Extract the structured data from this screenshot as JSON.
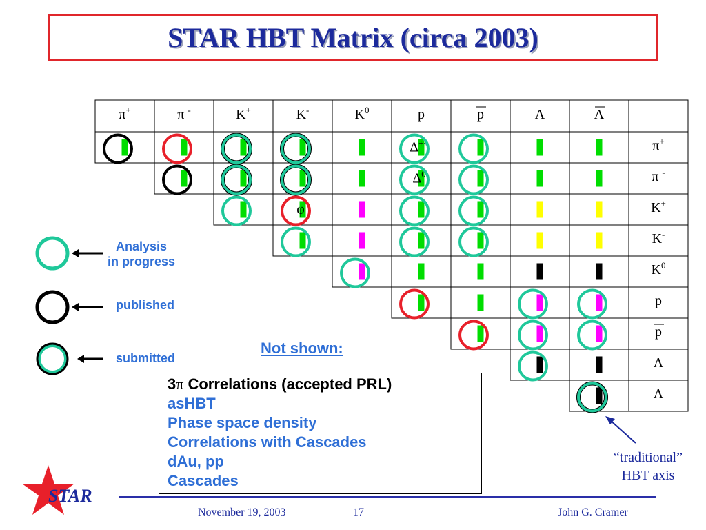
{
  "title": "STAR HBT Matrix (circa 2003)",
  "matrix": {
    "columns": [
      {
        "base": "π",
        "sup": "+",
        "bar": false
      },
      {
        "base": "π ",
        "sup": "-",
        "bar": false
      },
      {
        "base": "K",
        "sup": "+",
        "bar": false
      },
      {
        "base": "K",
        "sup": "-",
        "bar": false
      },
      {
        "base": "K",
        "sup": "0",
        "bar": false
      },
      {
        "base": "p",
        "sup": "",
        "bar": false
      },
      {
        "base": "p",
        "sup": "",
        "bar": true
      },
      {
        "base": "Λ",
        "sup": "",
        "bar": false
      },
      {
        "base": "Λ",
        "sup": "",
        "bar": true
      }
    ],
    "rows": [
      {
        "base": "π",
        "sup": "+",
        "bar": false
      },
      {
        "base": "π ",
        "sup": "-",
        "bar": false
      },
      {
        "base": "K",
        "sup": "+",
        "bar": false
      },
      {
        "base": "K",
        "sup": "-",
        "bar": false
      },
      {
        "base": "K",
        "sup": "0",
        "bar": false
      },
      {
        "base": "p",
        "sup": "",
        "bar": false
      },
      {
        "base": "p",
        "sup": "",
        "bar": true
      },
      {
        "base": "Λ",
        "sup": "",
        "bar": false
      },
      {
        "base": "Λ",
        "sup": "",
        "bar": false
      }
    ],
    "cell_labels": [
      {
        "row": 0,
        "col": 5,
        "base": "Δ",
        "sup": "++"
      },
      {
        "row": 1,
        "col": 5,
        "base": "Δ",
        "sup": "0"
      },
      {
        "row": 2,
        "col": 3,
        "base": "φ",
        "sup": ""
      }
    ],
    "colors": {
      "green": "#00dd00",
      "magenta": "#ff00ff",
      "yellow": "#ffff00",
      "black": "#000000",
      "analysis": "#1fc89a",
      "published": "#000000",
      "submitted": "#1fa87a",
      "red": "#e8202a"
    },
    "cells": [
      {
        "row": 0,
        "col": 0,
        "bar": "green",
        "ring": "published"
      },
      {
        "row": 0,
        "col": 1,
        "bar": "green",
        "ring": "red"
      },
      {
        "row": 0,
        "col": 2,
        "bar": "green",
        "ring": "submitted"
      },
      {
        "row": 0,
        "col": 3,
        "bar": "green",
        "ring": "submitted"
      },
      {
        "row": 0,
        "col": 4,
        "bar": "green",
        "ring": ""
      },
      {
        "row": 0,
        "col": 5,
        "bar": "green",
        "ring": "analysis"
      },
      {
        "row": 0,
        "col": 6,
        "bar": "green",
        "ring": "analysis"
      },
      {
        "row": 0,
        "col": 7,
        "bar": "green",
        "ring": ""
      },
      {
        "row": 0,
        "col": 8,
        "bar": "green",
        "ring": ""
      },
      {
        "row": 1,
        "col": 1,
        "bar": "green",
        "ring": "published"
      },
      {
        "row": 1,
        "col": 2,
        "bar": "green",
        "ring": "submitted"
      },
      {
        "row": 1,
        "col": 3,
        "bar": "green",
        "ring": "submitted"
      },
      {
        "row": 1,
        "col": 4,
        "bar": "green",
        "ring": ""
      },
      {
        "row": 1,
        "col": 5,
        "bar": "green",
        "ring": "analysis"
      },
      {
        "row": 1,
        "col": 6,
        "bar": "green",
        "ring": "analysis"
      },
      {
        "row": 1,
        "col": 7,
        "bar": "green",
        "ring": ""
      },
      {
        "row": 1,
        "col": 8,
        "bar": "green",
        "ring": ""
      },
      {
        "row": 2,
        "col": 2,
        "bar": "green",
        "ring": "analysis"
      },
      {
        "row": 2,
        "col": 3,
        "bar": "green",
        "ring": "red"
      },
      {
        "row": 2,
        "col": 4,
        "bar": "magenta",
        "ring": ""
      },
      {
        "row": 2,
        "col": 5,
        "bar": "green",
        "ring": "analysis"
      },
      {
        "row": 2,
        "col": 6,
        "bar": "green",
        "ring": "analysis"
      },
      {
        "row": 2,
        "col": 7,
        "bar": "yellow",
        "ring": ""
      },
      {
        "row": 2,
        "col": 8,
        "bar": "yellow",
        "ring": ""
      },
      {
        "row": 3,
        "col": 3,
        "bar": "green",
        "ring": "analysis"
      },
      {
        "row": 3,
        "col": 4,
        "bar": "magenta",
        "ring": ""
      },
      {
        "row": 3,
        "col": 5,
        "bar": "green",
        "ring": "analysis"
      },
      {
        "row": 3,
        "col": 6,
        "bar": "green",
        "ring": "analysis"
      },
      {
        "row": 3,
        "col": 7,
        "bar": "yellow",
        "ring": ""
      },
      {
        "row": 3,
        "col": 8,
        "bar": "yellow",
        "ring": ""
      },
      {
        "row": 4,
        "col": 4,
        "bar": "magenta",
        "ring": "analysis"
      },
      {
        "row": 4,
        "col": 5,
        "bar": "green",
        "ring": ""
      },
      {
        "row": 4,
        "col": 6,
        "bar": "green",
        "ring": ""
      },
      {
        "row": 4,
        "col": 7,
        "bar": "black",
        "ring": ""
      },
      {
        "row": 4,
        "col": 8,
        "bar": "black",
        "ring": ""
      },
      {
        "row": 5,
        "col": 5,
        "bar": "green",
        "ring": "red"
      },
      {
        "row": 5,
        "col": 6,
        "bar": "green",
        "ring": ""
      },
      {
        "row": 5,
        "col": 7,
        "bar": "magenta",
        "ring": "analysis"
      },
      {
        "row": 5,
        "col": 8,
        "bar": "magenta",
        "ring": "analysis"
      },
      {
        "row": 6,
        "col": 6,
        "bar": "green",
        "ring": "red"
      },
      {
        "row": 6,
        "col": 7,
        "bar": "magenta",
        "ring": "analysis"
      },
      {
        "row": 6,
        "col": 8,
        "bar": "magenta",
        "ring": "analysis"
      },
      {
        "row": 7,
        "col": 7,
        "bar": "black",
        "ring": "analysis"
      },
      {
        "row": 7,
        "col": 8,
        "bar": "black",
        "ring": ""
      },
      {
        "row": 8,
        "col": 8,
        "bar": "black",
        "ring": "submitted"
      }
    ]
  },
  "legend": {
    "analysis_label_1": "Analysis",
    "analysis_label_2": "in progress",
    "published_label": "published",
    "submitted_label": "submitted"
  },
  "not_shown": "Not shown:",
  "notes": {
    "first_num": "3",
    "first_sym": "π",
    "first_rest": " Correlations (accepted PRL)",
    "items": [
      "asHBT",
      "Phase space density",
      "Correlations with Cascades",
      "dAu, pp",
      "Cascades"
    ]
  },
  "traditional_1": "“traditional”",
  "traditional_2": "HBT axis",
  "footer": {
    "date": "November 19, 2003",
    "page": "17",
    "author": "John G. Cramer",
    "logo": "STAR"
  }
}
